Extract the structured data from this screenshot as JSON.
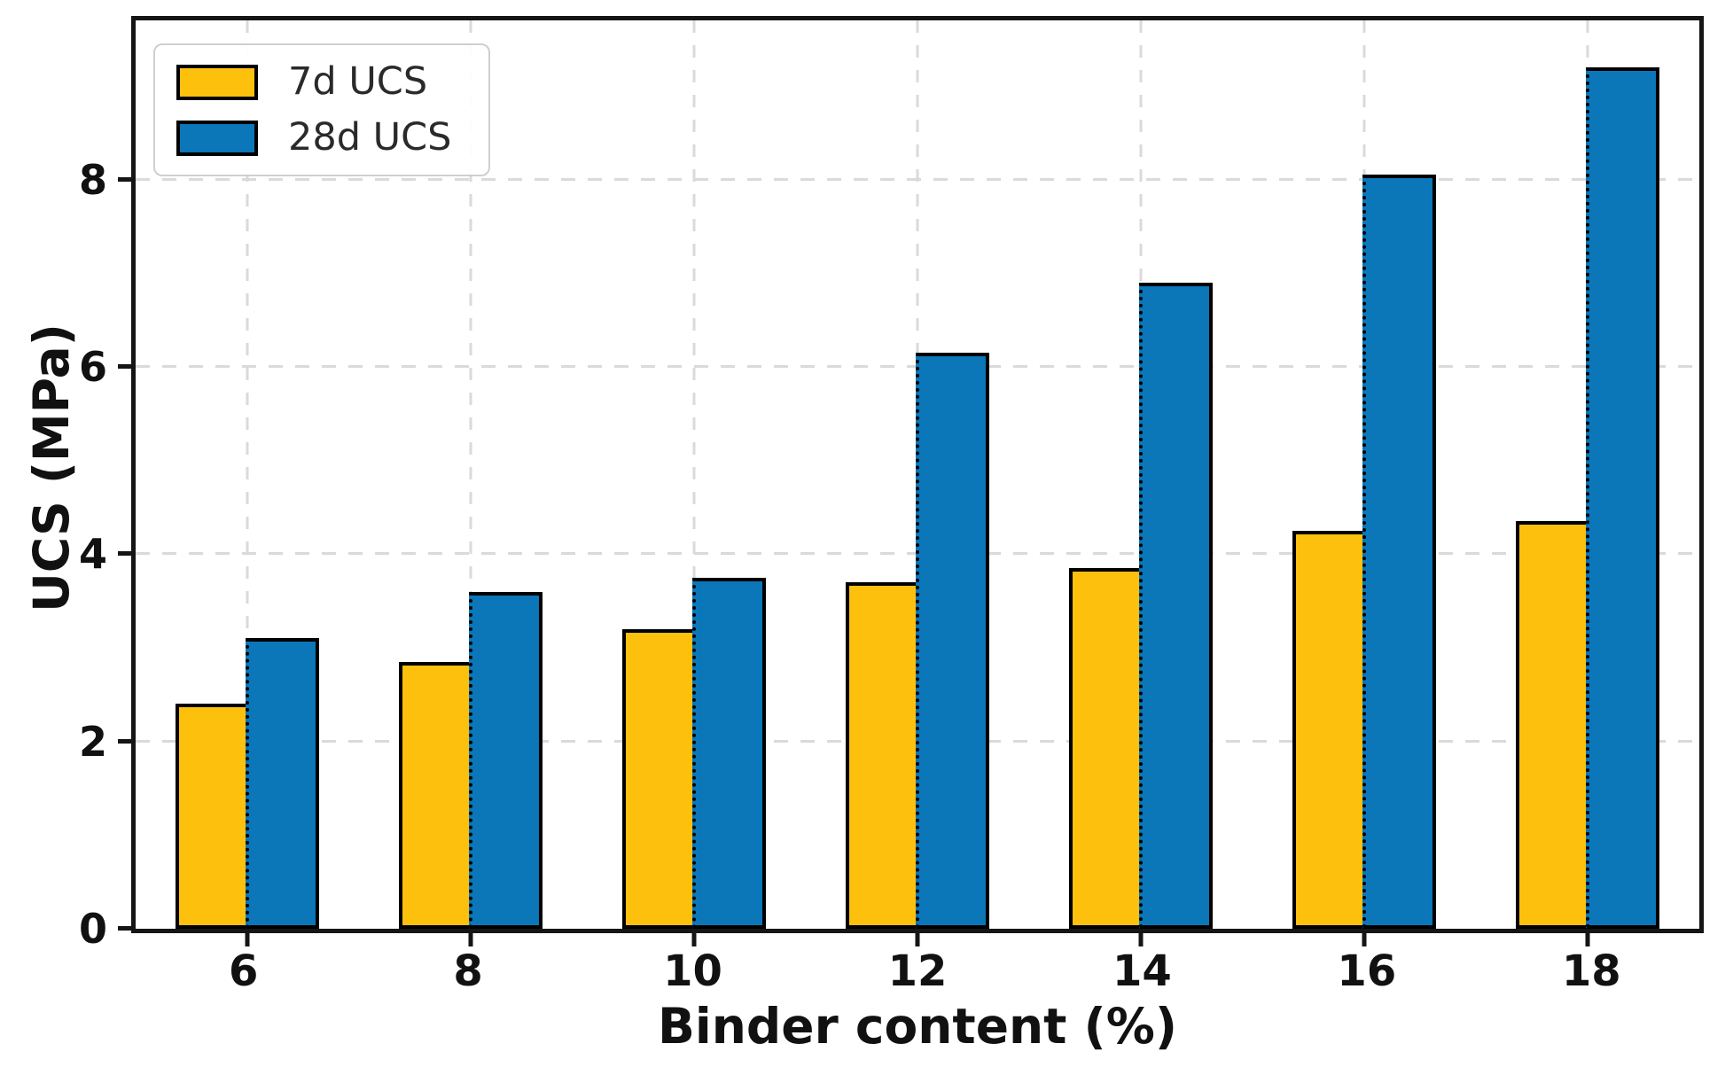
{
  "chart_data": {
    "type": "bar",
    "title": "",
    "xlabel": "Binder content (%)",
    "ylabel": "UCS (MPa)",
    "categories": [
      "6",
      "8",
      "10",
      "12",
      "14",
      "16",
      "18"
    ],
    "series": [
      {
        "name": "7d UCS",
        "color": "#FDC00D",
        "values": [
          2.4,
          2.85,
          3.2,
          3.7,
          3.85,
          4.25,
          4.35
        ]
      },
      {
        "name": "28d UCS",
        "color": "#0B76B8",
        "values": [
          3.1,
          3.6,
          3.75,
          6.15,
          6.9,
          8.05,
          9.2
        ]
      }
    ],
    "y_ticks": [
      0,
      2,
      4,
      6,
      8
    ],
    "ylim": [
      0,
      9.7
    ],
    "grid": true,
    "grid_style": "dashed",
    "legend_position": "upper-left",
    "colors": {
      "bar_edge": "#000000",
      "gridline": "#dadada",
      "axis": "#151515",
      "text": "#111111",
      "legend_text": "#2a2a2a"
    }
  }
}
